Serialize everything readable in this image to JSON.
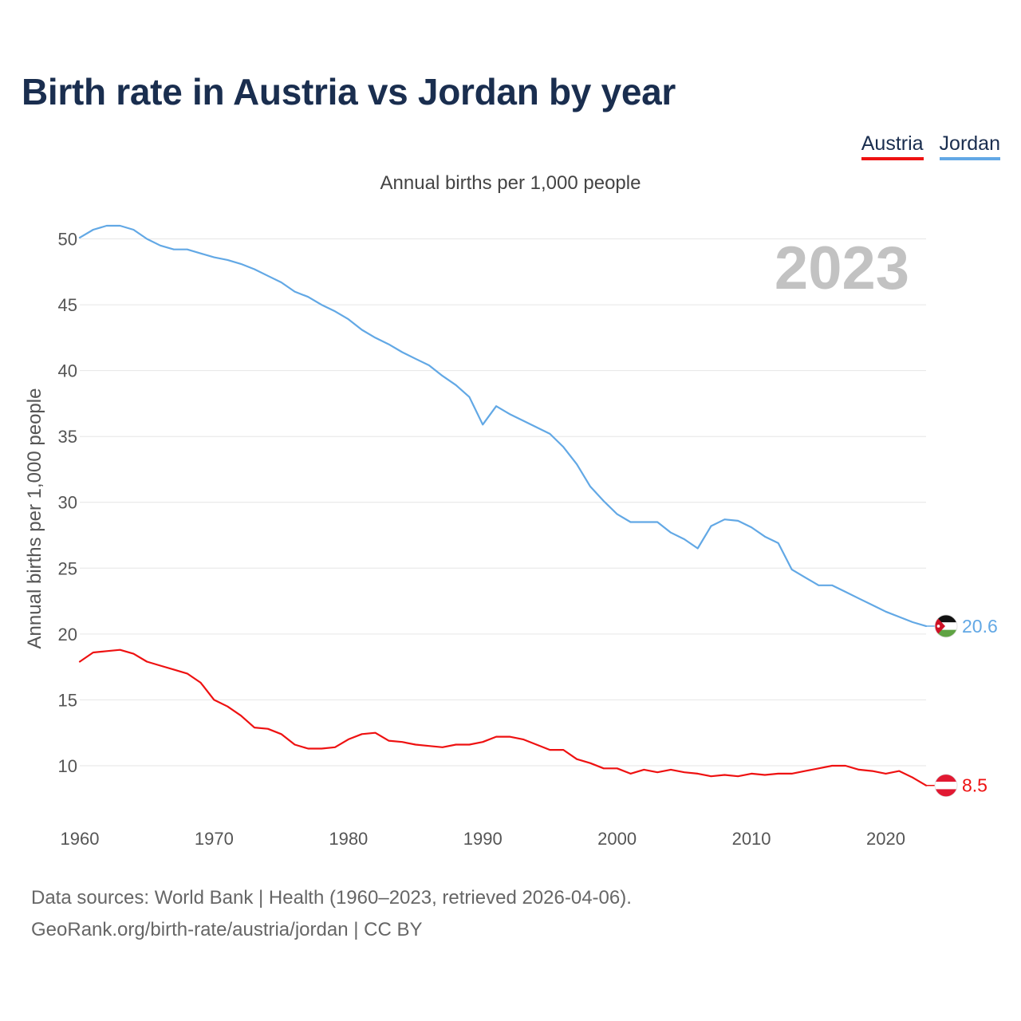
{
  "page": {
    "title": "Birth rate in Austria vs Jordan by year",
    "subtitle": "Annual births per 1,000 people",
    "year_watermark": "2023",
    "source_line1": "Data sources: World Bank | Health (1960–2023, retrieved 2026-04-06).",
    "source_line2": "GeoRank.org/birth-rate/austria/jordan | CC BY"
  },
  "legend": [
    {
      "label": "Austria",
      "color": "#ee1111",
      "text_color": "#1a2e4f"
    },
    {
      "label": "Jordan",
      "color": "#62a8e5",
      "text_color": "#1a2e4f"
    }
  ],
  "chart_data": {
    "type": "line",
    "title": "Birth rate in Austria vs Jordan by year",
    "subtitle": "Annual births per 1,000 people",
    "xlabel": "",
    "ylabel": "Annual births per 1,000 people",
    "xlim": [
      1960,
      2023
    ],
    "ylim": [
      6,
      53
    ],
    "x_ticks": [
      1960,
      1970,
      1980,
      1990,
      2000,
      2010,
      2020
    ],
    "y_ticks": [
      10,
      15,
      20,
      25,
      30,
      35,
      40,
      45,
      50
    ],
    "grid": true,
    "legend_position": "top-right",
    "x": [
      1960,
      1961,
      1962,
      1963,
      1964,
      1965,
      1966,
      1967,
      1968,
      1969,
      1970,
      1971,
      1972,
      1973,
      1974,
      1975,
      1976,
      1977,
      1978,
      1979,
      1980,
      1981,
      1982,
      1983,
      1984,
      1985,
      1986,
      1987,
      1988,
      1989,
      1990,
      1991,
      1992,
      1993,
      1994,
      1995,
      1996,
      1997,
      1998,
      1999,
      2000,
      2001,
      2002,
      2003,
      2004,
      2005,
      2006,
      2007,
      2008,
      2009,
      2010,
      2011,
      2012,
      2013,
      2014,
      2015,
      2016,
      2017,
      2018,
      2019,
      2020,
      2021,
      2022,
      2023
    ],
    "series": [
      {
        "name": "Austria",
        "color": "#ee1111",
        "end_label": "8.5",
        "flag": "austria",
        "values": [
          17.9,
          18.6,
          18.7,
          18.8,
          18.5,
          17.9,
          17.6,
          17.3,
          17.0,
          16.3,
          15.0,
          14.5,
          13.8,
          12.9,
          12.8,
          12.4,
          11.6,
          11.3,
          11.3,
          11.4,
          12.0,
          12.4,
          12.5,
          11.9,
          11.8,
          11.6,
          11.5,
          11.4,
          11.6,
          11.6,
          11.8,
          12.2,
          12.2,
          12.0,
          11.6,
          11.2,
          11.2,
          10.5,
          10.2,
          9.8,
          9.8,
          9.4,
          9.7,
          9.5,
          9.7,
          9.5,
          9.4,
          9.2,
          9.3,
          9.2,
          9.4,
          9.3,
          9.4,
          9.4,
          9.6,
          9.8,
          10.0,
          10.0,
          9.7,
          9.6,
          9.4,
          9.6,
          9.1,
          8.5
        ]
      },
      {
        "name": "Jordan",
        "color": "#62a8e5",
        "end_label": "20.6",
        "flag": "jordan",
        "values": [
          50.1,
          50.7,
          51.0,
          51.0,
          50.7,
          50.0,
          49.5,
          49.2,
          49.2,
          48.9,
          48.6,
          48.4,
          48.1,
          47.7,
          47.2,
          46.7,
          46.0,
          45.6,
          45.0,
          44.5,
          43.9,
          43.1,
          42.5,
          42.0,
          41.4,
          40.9,
          40.4,
          39.6,
          38.9,
          38.0,
          35.9,
          37.3,
          36.7,
          36.2,
          35.7,
          35.2,
          34.2,
          32.9,
          31.2,
          30.1,
          29.1,
          28.5,
          28.5,
          28.5,
          27.7,
          27.2,
          26.5,
          28.2,
          28.7,
          28.6,
          28.1,
          27.4,
          26.9,
          24.9,
          24.3,
          23.7,
          23.7,
          23.2,
          22.7,
          22.2,
          21.7,
          21.3,
          20.9,
          20.6
        ]
      }
    ]
  }
}
